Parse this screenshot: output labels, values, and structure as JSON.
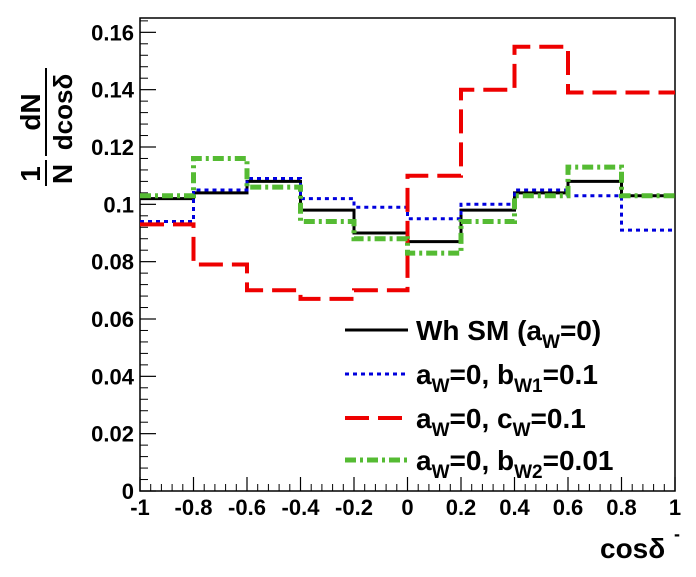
{
  "chart_data": {
    "type": "line",
    "title": "",
    "xlabel": "cosδ",
    "xlabel_superscript": "-",
    "ylabel": {
      "fraction_numerator": "1",
      "fraction_denominator": "N",
      "numerator": "dN",
      "denominator": "dcosδ"
    },
    "xlim": [
      -1,
      1
    ],
    "ylim": [
      0,
      0.165
    ],
    "grid": false,
    "legend_position": "bottom-right",
    "x_ticks": [
      "-1",
      "-0.8",
      "-0.6",
      "-0.4",
      "-0.2",
      "0",
      "0.2",
      "0.4",
      "0.6",
      "0.8",
      "1"
    ],
    "y_ticks": [
      "0",
      "0.02",
      "0.04",
      "0.06",
      "0.08",
      "0.1",
      "0.12",
      "0.14",
      "0.16"
    ],
    "bin_edges": [
      -1,
      -0.8,
      -0.6,
      -0.4,
      -0.2,
      0,
      0.2,
      0.4,
      0.6,
      0.8,
      1
    ],
    "series": [
      {
        "legend": {
          "main": "Wh SM (a",
          "sub": "W",
          "tail": "=0)",
          "sub2": "",
          "tail2": ""
        },
        "color": "#000000",
        "dash": "",
        "values": [
          0.102,
          0.104,
          0.108,
          0.098,
          0.09,
          0.087,
          0.098,
          0.104,
          0.108,
          0.103
        ]
      },
      {
        "legend": {
          "main": "a",
          "sub": "W",
          "tail": "=0, b",
          "sub2": "W1",
          "tail2": "=0.1"
        },
        "color": "#0000dd",
        "dash": "4,4",
        "values": [
          0.094,
          0.105,
          0.109,
          0.102,
          0.099,
          0.095,
          0.1,
          0.105,
          0.103,
          0.091
        ]
      },
      {
        "legend": {
          "main": "a",
          "sub": "W",
          "tail": "=0, c",
          "sub2": "W",
          "tail2": "=0.1"
        },
        "color": "#ee0000",
        "dash": "24,9",
        "values": [
          0.093,
          0.079,
          0.07,
          0.067,
          0.07,
          0.11,
          0.14,
          0.155,
          0.139,
          0.139
        ]
      },
      {
        "legend": {
          "main": "a",
          "sub": "W",
          "tail": "=0, b",
          "sub2": "W2",
          "tail2": "=0.01"
        },
        "color": "#55bb33",
        "dash": "11,4,3,4",
        "values": [
          0.103,
          0.116,
          0.106,
          0.094,
          0.088,
          0.083,
          0.094,
          0.103,
          0.113,
          0.103
        ]
      }
    ]
  }
}
